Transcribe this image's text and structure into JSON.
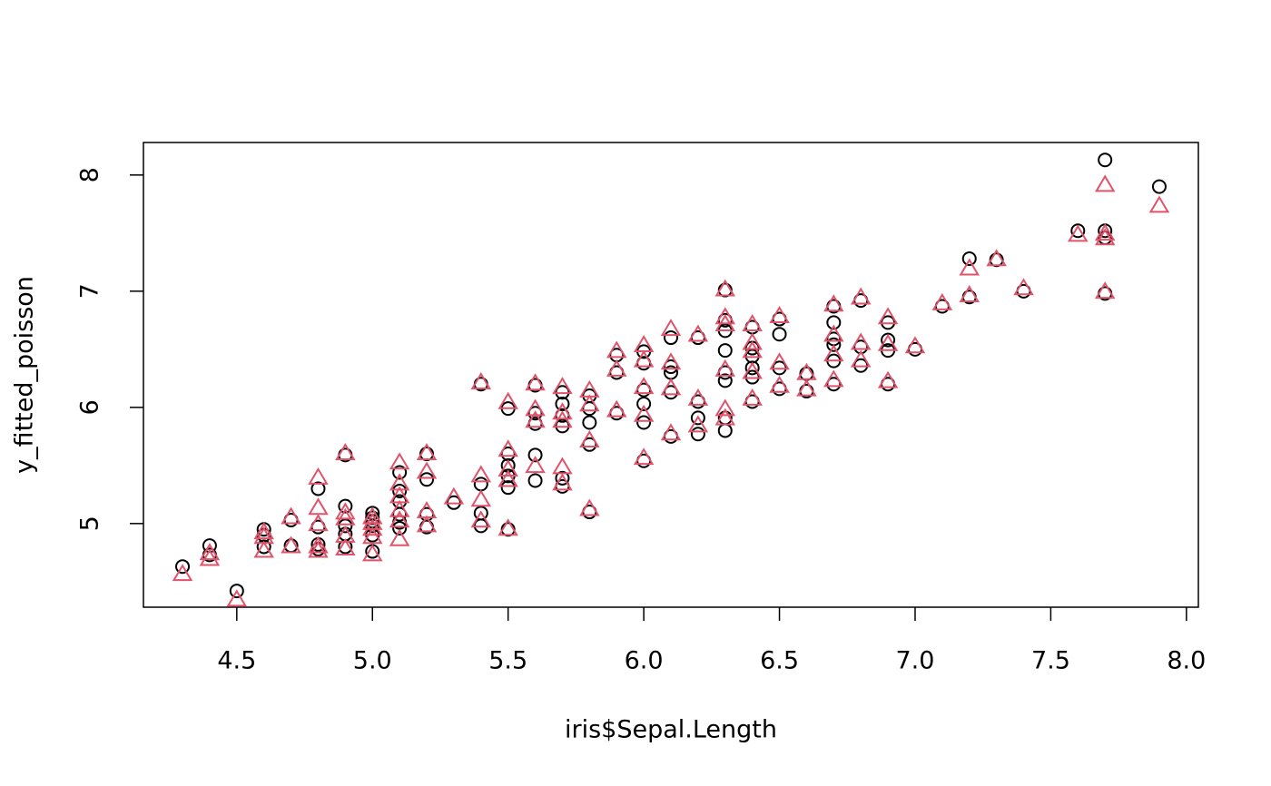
{
  "chart_data": {
    "type": "scatter",
    "x_label": "iris$Sepal.Length",
    "y_label": "y_fitted_poisson",
    "xlim": [
      4.156,
      8.044
    ],
    "ylim": [
      4.28,
      8.28
    ],
    "xticks": [
      4.5,
      {
        "value": 5,
        "label": "5.0"
      },
      5.5,
      {
        "value": 6,
        "label": "6.0"
      },
      6.5,
      {
        "value": 7,
        "label": "7.0"
      },
      7.5,
      {
        "value": 8,
        "label": "8.0"
      }
    ],
    "yticks": [
      5,
      6,
      7,
      8
    ],
    "series": [
      {
        "color": "#000000",
        "marker": "circle",
        "x": [
          4.3,
          4.4,
          4.4,
          4.5,
          4.6,
          4.6,
          4.6,
          4.7,
          4.7,
          4.8,
          4.8,
          4.8,
          4.8,
          4.9,
          4.9,
          4.9,
          4.9,
          4.9,
          5.0,
          5.0,
          5.0,
          5.0,
          5.0,
          5.0,
          5.1,
          5.1,
          5.1,
          5.1,
          5.1,
          5.1,
          5.2,
          5.2,
          5.2,
          5.2,
          5.3,
          5.4,
          5.4,
          5.4,
          5.4,
          5.5,
          5.5,
          5.5,
          5.5,
          5.5,
          5.5,
          5.6,
          5.6,
          5.6,
          5.6,
          5.6,
          5.7,
          5.7,
          5.7,
          5.7,
          5.7,
          5.7,
          5.8,
          5.8,
          5.8,
          5.8,
          5.8,
          5.9,
          5.9,
          5.9,
          6.0,
          6.0,
          6.0,
          6.0,
          6.0,
          6.0,
          6.1,
          6.1,
          6.1,
          6.1,
          6.1,
          6.2,
          6.2,
          6.2,
          6.2,
          6.3,
          6.3,
          6.3,
          6.3,
          6.3,
          6.3,
          6.3,
          6.3,
          6.4,
          6.4,
          6.4,
          6.4,
          6.4,
          6.4,
          6.5,
          6.5,
          6.5,
          6.5,
          6.6,
          6.6,
          6.7,
          6.7,
          6.7,
          6.7,
          6.7,
          6.7,
          6.8,
          6.8,
          6.8,
          6.9,
          6.9,
          6.9,
          6.9,
          7.0,
          7.1,
          7.2,
          7.2,
          7.3,
          7.4,
          7.6,
          7.7,
          7.7,
          7.7,
          7.7,
          7.9
        ],
        "values": [
          4.63,
          4.81,
          4.73,
          4.42,
          4.95,
          4.9,
          4.8,
          5.03,
          4.81,
          5.3,
          4.97,
          4.82,
          4.78,
          5.59,
          5.15,
          4.98,
          4.91,
          4.8,
          5.09,
          5.05,
          5.02,
          4.98,
          4.9,
          4.76,
          5.44,
          5.28,
          5.19,
          5.08,
          5.01,
          4.96,
          5.6,
          5.38,
          5.08,
          4.97,
          5.18,
          6.2,
          5.34,
          5.09,
          4.98,
          5.99,
          5.6,
          5.5,
          5.41,
          5.31,
          4.95,
          6.19,
          5.95,
          5.86,
          5.59,
          5.37,
          6.13,
          6.03,
          5.93,
          5.84,
          5.39,
          5.32,
          6.1,
          5.99,
          5.87,
          5.68,
          5.1,
          6.45,
          6.3,
          5.95,
          6.48,
          6.38,
          6.15,
          6.03,
          5.87,
          5.54,
          6.6,
          6.35,
          6.3,
          6.13,
          5.75,
          6.6,
          6.05,
          5.91,
          5.77,
          7.01,
          6.75,
          6.66,
          6.49,
          6.3,
          6.23,
          5.91,
          5.8,
          6.69,
          6.51,
          6.44,
          6.34,
          6.26,
          6.05,
          6.76,
          6.63,
          6.34,
          6.16,
          6.29,
          6.14,
          6.87,
          6.73,
          6.59,
          6.54,
          6.4,
          6.2,
          6.92,
          6.52,
          6.36,
          6.73,
          6.58,
          6.49,
          6.2,
          6.5,
          6.87,
          7.28,
          6.95,
          7.27,
          7.0,
          7.52,
          8.13,
          7.52,
          7.46,
          6.98,
          7.9
        ]
      },
      {
        "color": "#DF536B",
        "marker": "triangle",
        "x": [
          4.3,
          4.4,
          4.4,
          4.5,
          4.6,
          4.6,
          4.6,
          4.7,
          4.7,
          4.8,
          4.8,
          4.8,
          4.8,
          4.8,
          4.9,
          4.9,
          4.9,
          4.9,
          4.9,
          5.0,
          5.0,
          5.0,
          5.0,
          5.0,
          5.1,
          5.1,
          5.1,
          5.1,
          5.1,
          5.1,
          5.2,
          5.2,
          5.2,
          5.2,
          5.3,
          5.4,
          5.4,
          5.4,
          5.4,
          5.5,
          5.5,
          5.5,
          5.5,
          5.5,
          5.6,
          5.6,
          5.6,
          5.6,
          5.7,
          5.7,
          5.7,
          5.7,
          5.7,
          5.8,
          5.8,
          5.8,
          5.8,
          5.9,
          5.9,
          5.9,
          6.0,
          6.0,
          6.0,
          6.0,
          6.0,
          6.1,
          6.1,
          6.1,
          6.1,
          6.2,
          6.2,
          6.2,
          6.3,
          6.3,
          6.3,
          6.3,
          6.3,
          6.3,
          6.4,
          6.4,
          6.4,
          6.4,
          6.4,
          6.5,
          6.5,
          6.5,
          6.6,
          6.6,
          6.7,
          6.7,
          6.7,
          6.7,
          6.8,
          6.8,
          6.8,
          6.9,
          6.9,
          6.9,
          7.0,
          7.1,
          7.2,
          7.2,
          7.3,
          7.4,
          7.6,
          7.7,
          7.7,
          7.7,
          7.7,
          7.9
        ],
        "values": [
          4.56,
          4.74,
          4.69,
          4.34,
          4.92,
          4.88,
          4.76,
          5.05,
          4.8,
          5.39,
          5.13,
          4.99,
          4.8,
          4.76,
          5.6,
          5.09,
          5.04,
          4.89,
          4.78,
          5.05,
          5.0,
          4.95,
          4.88,
          4.73,
          5.52,
          5.34,
          5.23,
          5.11,
          5.02,
          4.86,
          5.6,
          5.44,
          5.1,
          4.98,
          5.22,
          6.21,
          5.41,
          5.2,
          5.02,
          6.04,
          5.63,
          5.46,
          5.37,
          4.95,
          6.2,
          5.98,
          5.88,
          5.49,
          6.17,
          5.95,
          5.88,
          5.48,
          5.34,
          6.14,
          6.02,
          5.71,
          5.12,
          6.48,
          6.32,
          5.97,
          6.53,
          6.4,
          6.17,
          5.93,
          5.56,
          6.67,
          6.38,
          6.16,
          5.77,
          6.62,
          6.07,
          5.84,
          7.01,
          6.77,
          6.71,
          6.32,
          5.98,
          5.9,
          6.71,
          6.55,
          6.48,
          6.3,
          6.07,
          6.78,
          6.38,
          6.18,
          6.29,
          6.15,
          6.88,
          6.62,
          6.45,
          6.23,
          6.94,
          6.55,
          6.4,
          6.77,
          6.54,
          6.22,
          6.52,
          6.89,
          7.19,
          6.96,
          7.27,
          7.02,
          7.48,
          7.91,
          7.49,
          7.45,
          6.99,
          7.73
        ]
      }
    ]
  }
}
